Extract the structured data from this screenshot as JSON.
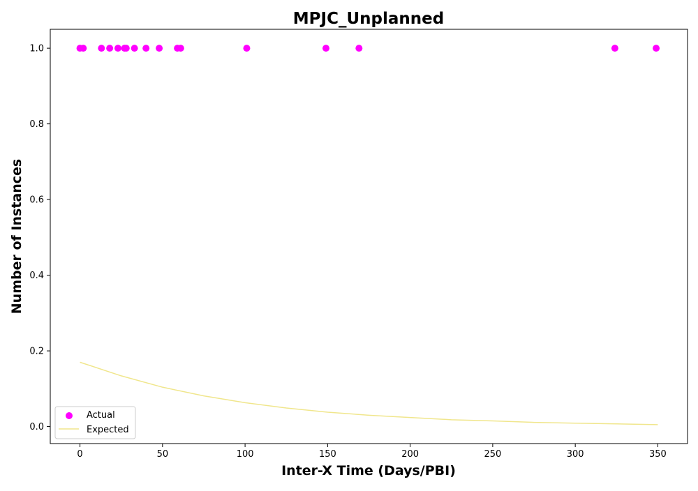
{
  "chart_data": {
    "type": "scatter",
    "title": "MPJC_Unplanned",
    "xlabel": "Inter-X Time (Days/PBI)",
    "ylabel": "Number of Instances",
    "xlim": [
      -18,
      368
    ],
    "ylim": [
      -0.045,
      1.05
    ],
    "xticks": [
      0,
      50,
      100,
      150,
      200,
      250,
      300,
      350
    ],
    "yticks": [
      0.0,
      0.2,
      0.4,
      0.6,
      0.8,
      1.0
    ],
    "ytick_format": 1,
    "grid": false,
    "legend_position": "lower-left",
    "series": [
      {
        "name": "Actual",
        "kind": "scatter",
        "color": "#ff00ff",
        "points": [
          {
            "x": 0,
            "y": 1.0
          },
          {
            "x": 2,
            "y": 1.0
          },
          {
            "x": 13,
            "y": 1.0
          },
          {
            "x": 18,
            "y": 1.0
          },
          {
            "x": 23,
            "y": 1.0
          },
          {
            "x": 27,
            "y": 1.0
          },
          {
            "x": 28,
            "y": 1.0
          },
          {
            "x": 33,
            "y": 1.0
          },
          {
            "x": 40,
            "y": 1.0
          },
          {
            "x": 48,
            "y": 1.0
          },
          {
            "x": 59,
            "y": 1.0
          },
          {
            "x": 61,
            "y": 1.0
          },
          {
            "x": 101,
            "y": 1.0
          },
          {
            "x": 149,
            "y": 1.0
          },
          {
            "x": 169,
            "y": 1.0
          },
          {
            "x": 324,
            "y": 1.0
          },
          {
            "x": 349,
            "y": 1.0
          }
        ]
      },
      {
        "name": "Expected",
        "kind": "line",
        "color": "#f0e68c",
        "points": [
          {
            "x": 0,
            "y": 0.17
          },
          {
            "x": 25,
            "y": 0.134
          },
          {
            "x": 50,
            "y": 0.104
          },
          {
            "x": 75,
            "y": 0.081
          },
          {
            "x": 100,
            "y": 0.063
          },
          {
            "x": 125,
            "y": 0.049
          },
          {
            "x": 150,
            "y": 0.038
          },
          {
            "x": 175,
            "y": 0.03
          },
          {
            "x": 200,
            "y": 0.024
          },
          {
            "x": 225,
            "y": 0.018
          },
          {
            "x": 250,
            "y": 0.015
          },
          {
            "x": 275,
            "y": 0.011
          },
          {
            "x": 300,
            "y": 0.009
          },
          {
            "x": 325,
            "y": 0.007
          },
          {
            "x": 350,
            "y": 0.005
          }
        ]
      }
    ]
  }
}
